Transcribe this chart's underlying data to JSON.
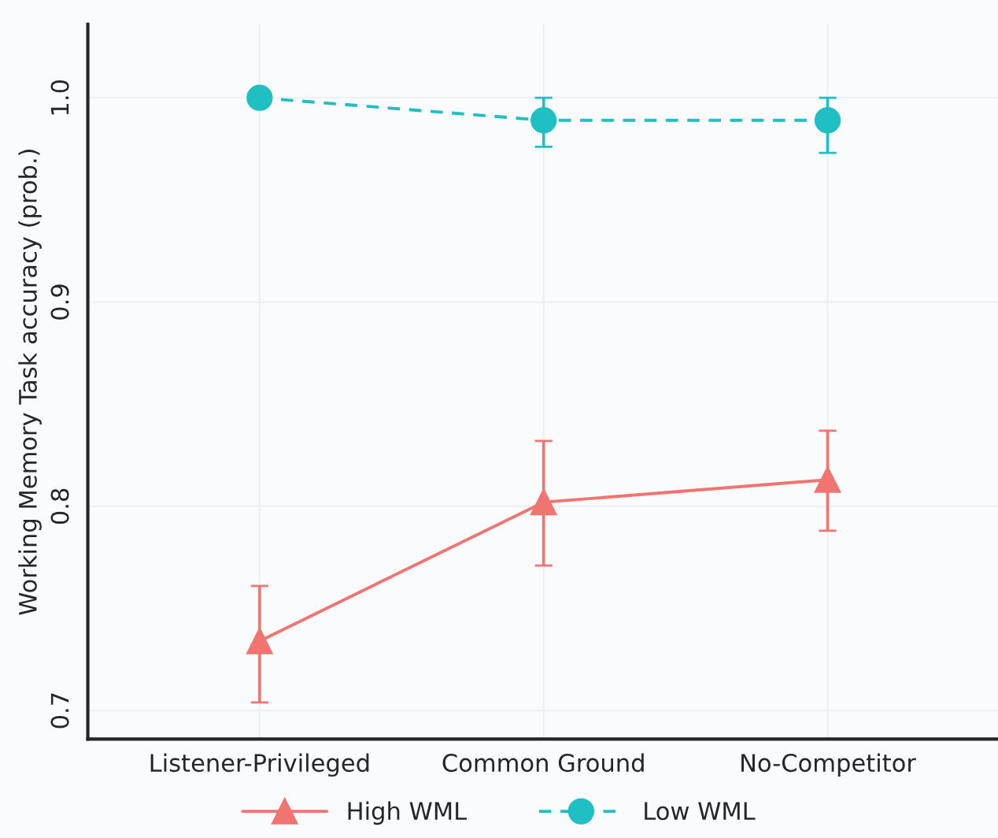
{
  "chart_data": {
    "type": "line",
    "ylabel": "Working Memory Task accuracy (prob.)",
    "categories": [
      "Listener-Privileged",
      "Common Ground",
      "No-Competitor"
    ],
    "series": [
      {
        "name": "High WML",
        "color": "#f07470",
        "values": [
          0.734,
          0.802,
          0.813
        ],
        "errors": [
          [
            0.704,
            0.761
          ],
          [
            0.771,
            0.832
          ],
          [
            0.788,
            0.837
          ]
        ],
        "marker": "triangle",
        "line_style": "solid"
      },
      {
        "name": "Low WML",
        "color": "#1fbfc4",
        "values": [
          1.0,
          0.989,
          0.989
        ],
        "errors": [
          null,
          [
            0.976,
            1.0
          ],
          [
            0.973,
            1.0
          ]
        ],
        "marker": "circle",
        "line_style": "dashed"
      }
    ],
    "ylim": [
      0.686,
      1.036
    ],
    "yticks": [
      0.7,
      0.8,
      0.9,
      {
        "value": 1.0,
        "label": "1.0"
      }
    ],
    "grid": true,
    "legend": "bottom"
  }
}
